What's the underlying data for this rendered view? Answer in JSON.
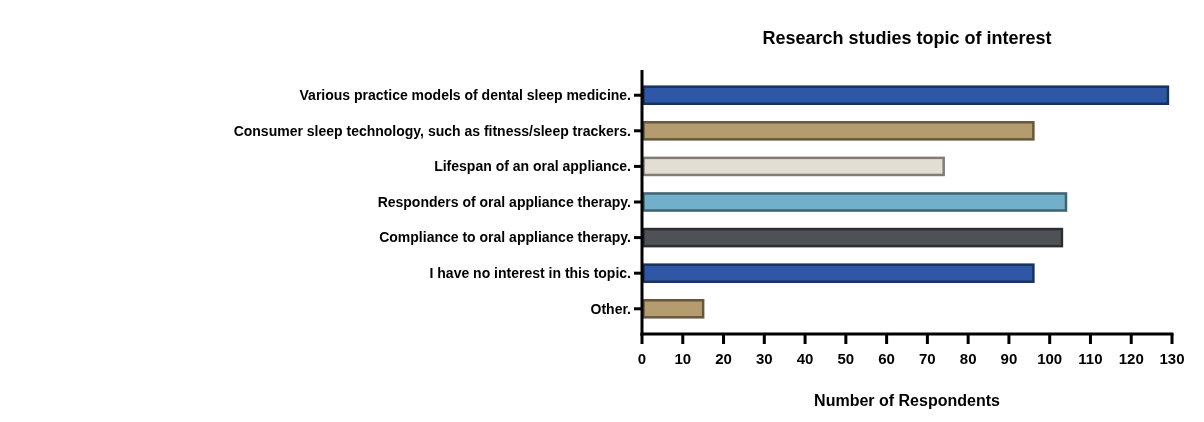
{
  "chart_data": {
    "type": "bar",
    "orientation": "horizontal",
    "title": "Research studies topic of interest",
    "xlabel": "Number of Respondents",
    "categories": [
      "Various practice models of dental sleep medicine.",
      "Consumer sleep technology, such as fitness/sleep trackers.",
      "Lifespan of an oral appliance.",
      "Responders of oral appliance therapy.",
      "Compliance to oral appliance therapy.",
      "I have no interest in this topic.",
      "Other."
    ],
    "values": [
      129,
      96,
      74,
      104,
      103,
      96,
      15
    ],
    "colors": [
      "#2e58a6",
      "#b59c6f",
      "#e3ded3",
      "#72afc9",
      "#4e5156",
      "#2e58a6",
      "#b59c6f"
    ],
    "xlim": [
      0,
      130
    ],
    "xticks": [
      0,
      10,
      20,
      30,
      40,
      50,
      60,
      70,
      80,
      90,
      100,
      110,
      120,
      130
    ],
    "grid": false
  }
}
